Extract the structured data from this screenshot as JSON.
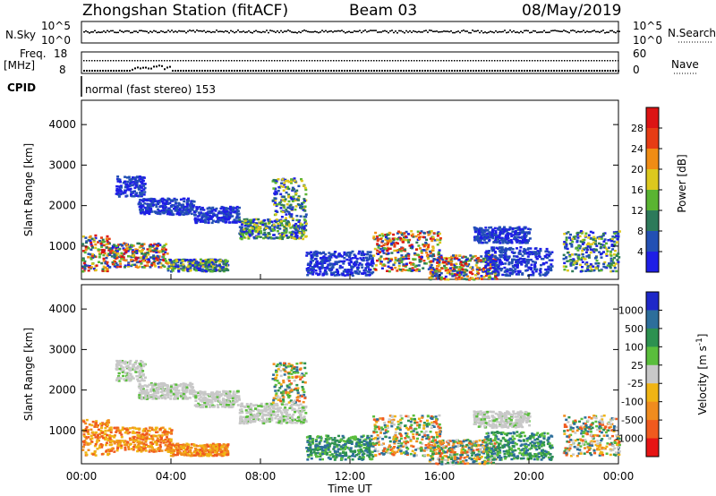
{
  "header": {
    "station": "Zhongshan Station (fitACF)",
    "beam": "Beam 03",
    "date": "08/May/2019"
  },
  "noise_panel": {
    "left_label": "N.Sky",
    "left_ticks": [
      "10^5",
      "10^0"
    ],
    "right_label": "N.Search",
    "right_ticks": [
      "10^5",
      "10^0"
    ]
  },
  "freq_panel": {
    "left_label_line1": "Freq.",
    "left_label_line2": "[MHz]",
    "left_ticks": [
      "18",
      "8"
    ],
    "right_label": "Nave",
    "right_ticks": [
      "60",
      "0"
    ]
  },
  "cpid_panel": {
    "label": "CPID",
    "mode_text": "normal (fast stereo) 153"
  },
  "chart_data": [
    {
      "type": "heatmap",
      "name": "power",
      "ylabel": "Slant Range [km]",
      "yticks": [
        "1000",
        "2000",
        "3000",
        "4000"
      ],
      "ylim": [
        180,
        4600
      ],
      "xlim": [
        0,
        24
      ],
      "colorbar_label": "Power [dB]",
      "colorbar_ticks": [
        "4",
        "8",
        "12",
        "16",
        "20",
        "24",
        "28"
      ],
      "colorbar_colors": [
        "#1e1ee6",
        "#2350b4",
        "#2d7a5a",
        "#5ab432",
        "#dcc81e",
        "#f08c14",
        "#e63c14",
        "#dc1414"
      ],
      "echo_regions": [
        {
          "t": [
            0.0,
            1.2
          ],
          "r": [
            400,
            1300
          ],
          "level": "strong"
        },
        {
          "t": [
            1.2,
            3.8
          ],
          "r": [
            500,
            1100
          ],
          "level": "strong"
        },
        {
          "t": [
            1.5,
            2.8
          ],
          "r": [
            2250,
            2750
          ],
          "level": "weak"
        },
        {
          "t": [
            3.8,
            6.5
          ],
          "r": [
            400,
            700
          ],
          "level": "medium"
        },
        {
          "t": [
            2.5,
            5.0
          ],
          "r": [
            1800,
            2200
          ],
          "level": "weak"
        },
        {
          "t": [
            5.0,
            7.0
          ],
          "r": [
            1600,
            2000
          ],
          "level": "weak"
        },
        {
          "t": [
            7.0,
            10.0
          ],
          "r": [
            1200,
            1700
          ],
          "level": "medium"
        },
        {
          "t": [
            8.5,
            10.0
          ],
          "r": [
            1700,
            2700
          ],
          "level": "medium"
        },
        {
          "t": [
            10.0,
            13.0
          ],
          "r": [
            300,
            900
          ],
          "level": "weak"
        },
        {
          "t": [
            13.0,
            16.0
          ],
          "r": [
            400,
            1400
          ],
          "level": "strong"
        },
        {
          "t": [
            15.5,
            18.5
          ],
          "r": [
            200,
            800
          ],
          "level": "strong"
        },
        {
          "t": [
            17.5,
            20.0
          ],
          "r": [
            1100,
            1500
          ],
          "level": "weak"
        },
        {
          "t": [
            18.0,
            21.0
          ],
          "r": [
            300,
            1000
          ],
          "level": "weak"
        },
        {
          "t": [
            21.5,
            24.0
          ],
          "r": [
            400,
            1400
          ],
          "level": "medium"
        }
      ]
    },
    {
      "type": "heatmap",
      "name": "velocity",
      "ylabel": "Slant Range [km]",
      "yticks": [
        "1000",
        "2000",
        "3000",
        "4000"
      ],
      "ylim": [
        180,
        4600
      ],
      "xlim": [
        0,
        24
      ],
      "xticks": [
        "00:00",
        "04:00",
        "08:00",
        "12:00",
        "16:00",
        "20:00",
        "00:00"
      ],
      "xlabel": "Time UT",
      "colorbar_label": "Velocity [m s^-1]",
      "colorbar_ticks": [
        "1000",
        "500",
        "100",
        "25",
        "-25",
        "-100",
        "-500",
        "-1000"
      ],
      "colorbar_colors": [
        "#1e28c8",
        "#2d6e9b",
        "#2d9150",
        "#5abe3c",
        "#c8c8c8",
        "#f0b414",
        "#f08c1e",
        "#f05a1e",
        "#e61414"
      ],
      "echo_regions": [
        {
          "t": [
            0.0,
            1.2
          ],
          "r": [
            400,
            1300
          ],
          "level": "neg"
        },
        {
          "t": [
            1.2,
            4.0
          ],
          "r": [
            500,
            1100
          ],
          "level": "neg"
        },
        {
          "t": [
            1.5,
            2.8
          ],
          "r": [
            2250,
            2750
          ],
          "level": "zero"
        },
        {
          "t": [
            3.8,
            6.5
          ],
          "r": [
            400,
            700
          ],
          "level": "neg"
        },
        {
          "t": [
            2.5,
            5.0
          ],
          "r": [
            1800,
            2200
          ],
          "level": "zero"
        },
        {
          "t": [
            5.0,
            7.0
          ],
          "r": [
            1600,
            2000
          ],
          "level": "zero"
        },
        {
          "t": [
            7.0,
            10.0
          ],
          "r": [
            1200,
            1700
          ],
          "level": "zero"
        },
        {
          "t": [
            8.5,
            10.0
          ],
          "r": [
            1700,
            2700
          ],
          "level": "mixed"
        },
        {
          "t": [
            10.0,
            13.0
          ],
          "r": [
            300,
            900
          ],
          "level": "pos"
        },
        {
          "t": [
            13.0,
            16.0
          ],
          "r": [
            400,
            1400
          ],
          "level": "mixed"
        },
        {
          "t": [
            15.5,
            18.5
          ],
          "r": [
            200,
            800
          ],
          "level": "mixed"
        },
        {
          "t": [
            17.5,
            20.0
          ],
          "r": [
            1100,
            1500
          ],
          "level": "zero"
        },
        {
          "t": [
            18.0,
            21.0
          ],
          "r": [
            300,
            1000
          ],
          "level": "pos"
        },
        {
          "t": [
            21.5,
            24.0
          ],
          "r": [
            400,
            1400
          ],
          "level": "mixed"
        }
      ]
    }
  ]
}
